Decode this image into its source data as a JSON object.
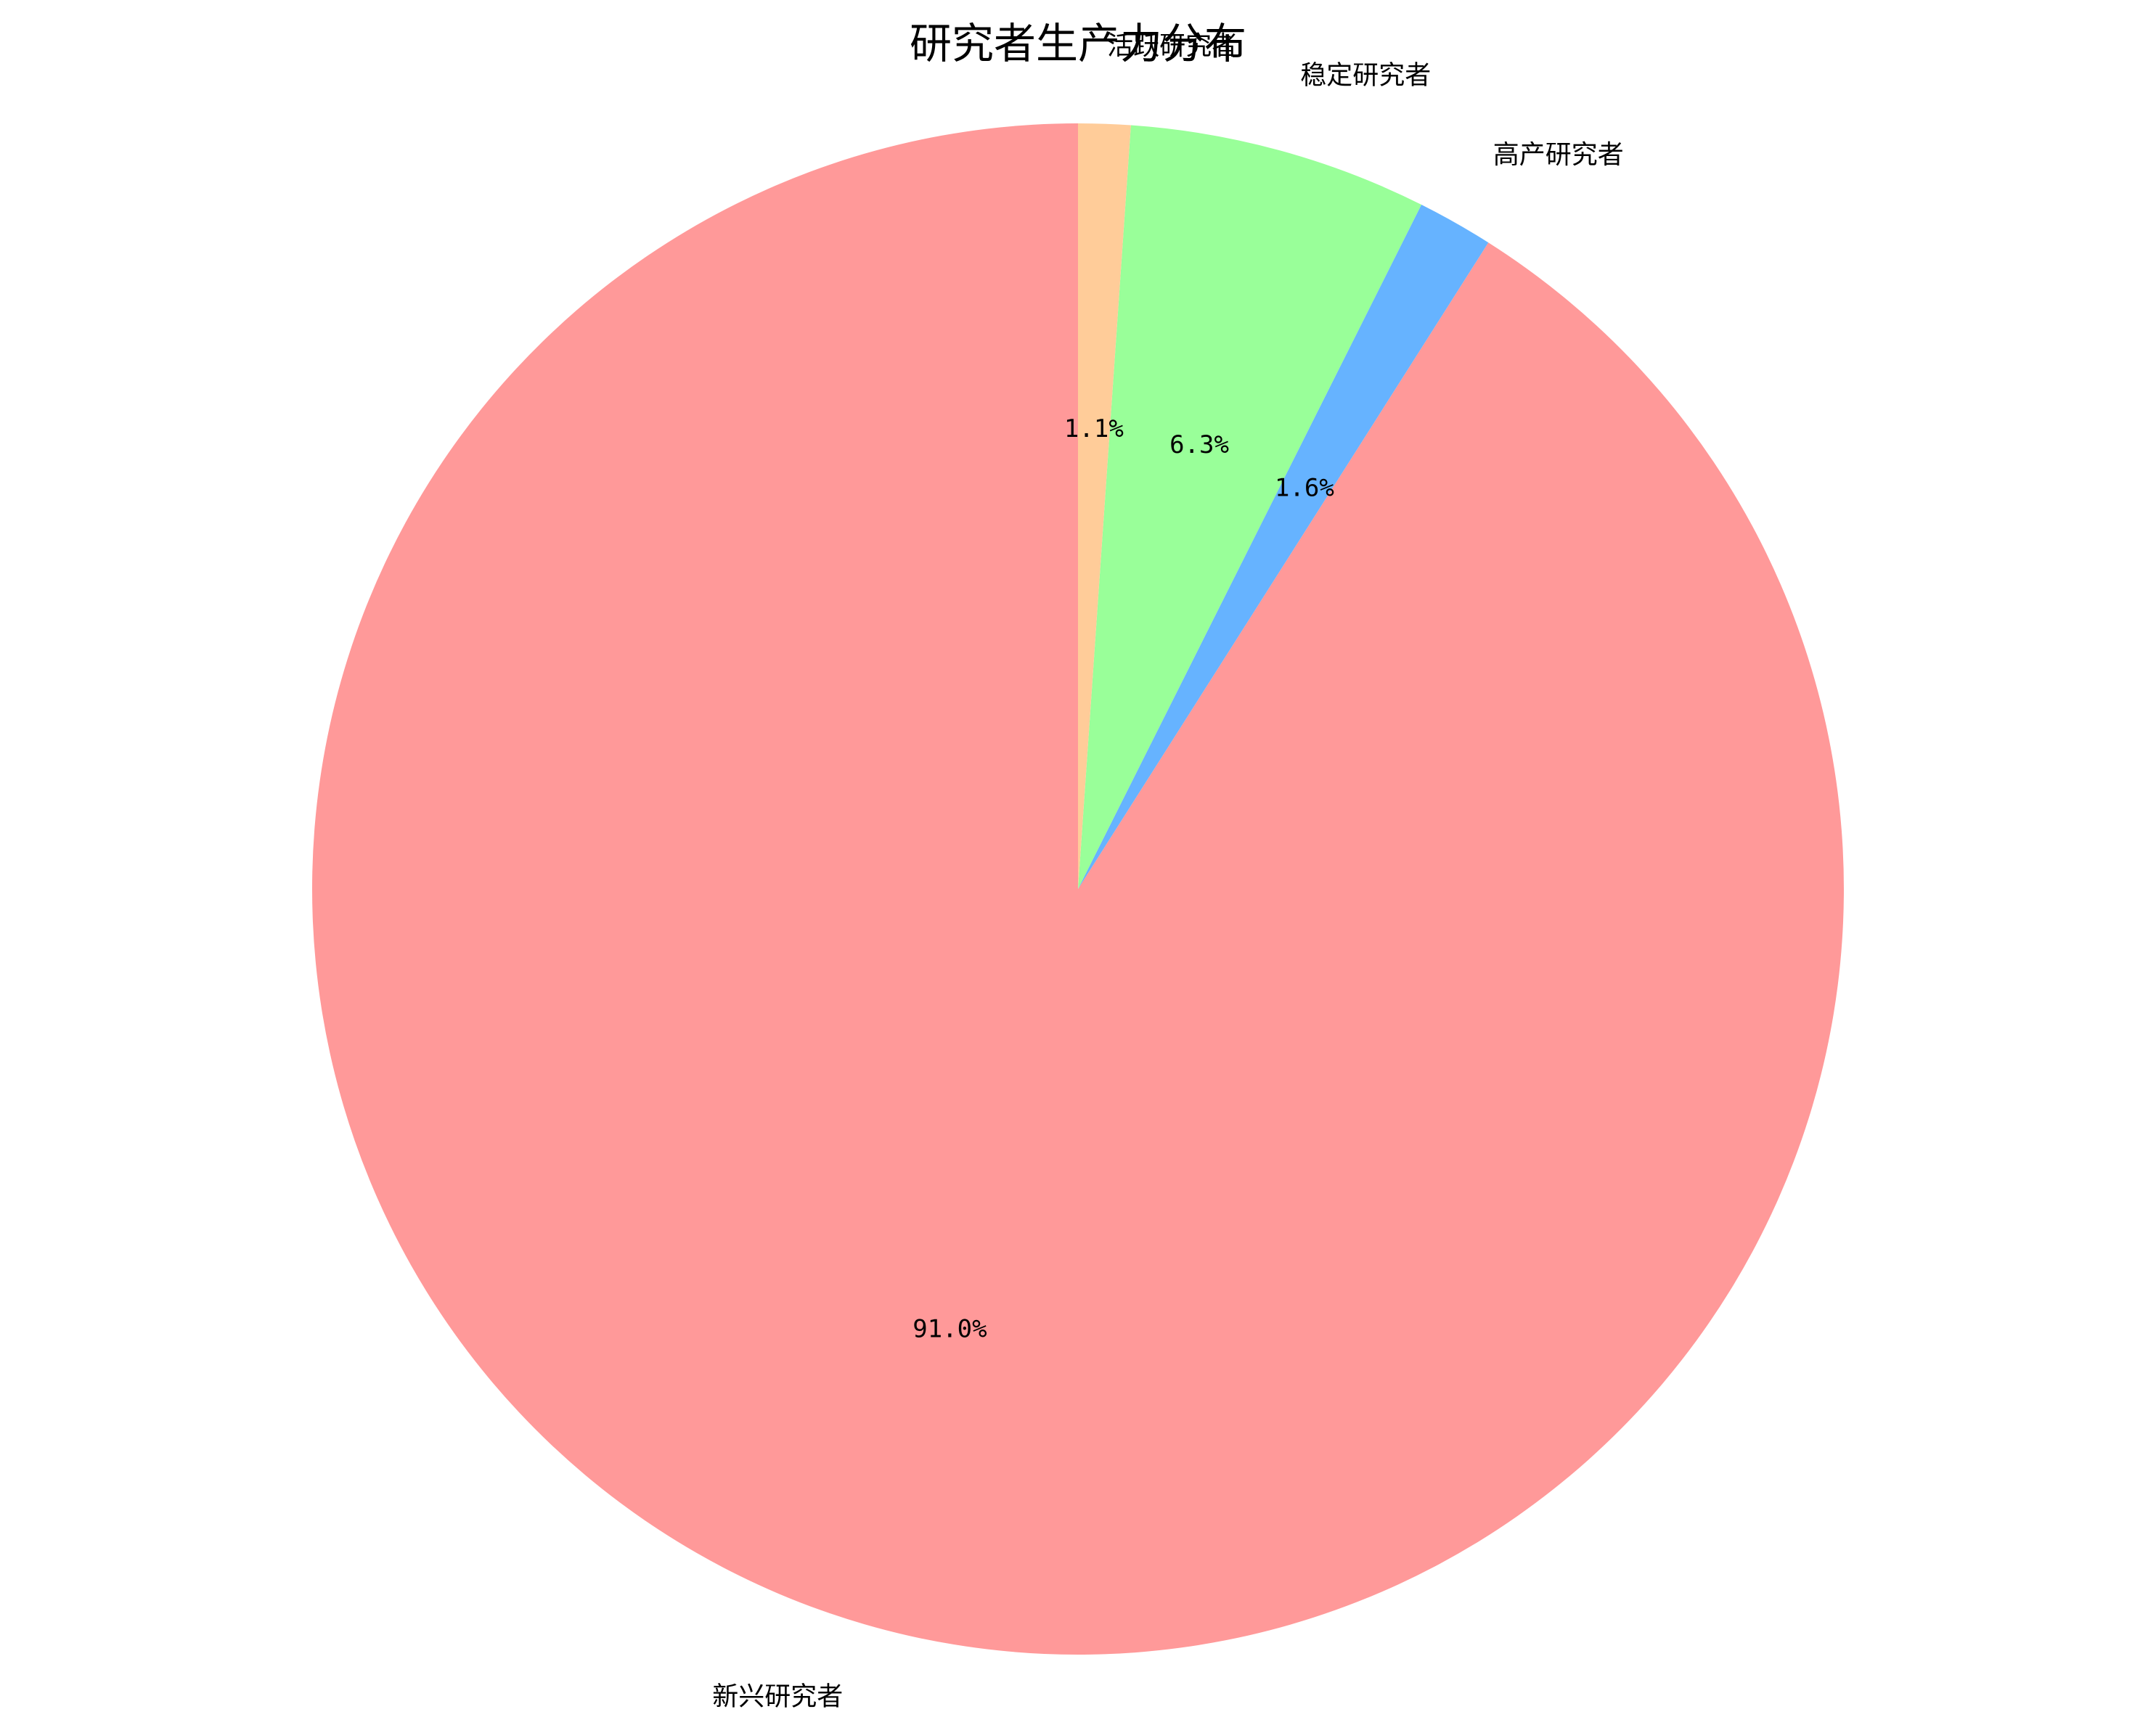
{
  "chart_data": {
    "type": "pie",
    "title": "研究者生产力分布",
    "start_angle_deg": 90,
    "direction": "counterclockwise",
    "slices": [
      {
        "label": "新兴研究者",
        "percent": 91.0,
        "percent_label": "91.0%",
        "color": "#ff9999"
      },
      {
        "label": "高产研究者",
        "percent": 1.6,
        "percent_label": "1.6%",
        "color": "#66b3ff"
      },
      {
        "label": "稳定研究者",
        "percent": 6.3,
        "percent_label": "6.3%",
        "color": "#99ff99"
      },
      {
        "label": "活跃研究者",
        "percent": 1.1,
        "percent_label": "1.1%",
        "color": "#ffcc99"
      }
    ]
  }
}
